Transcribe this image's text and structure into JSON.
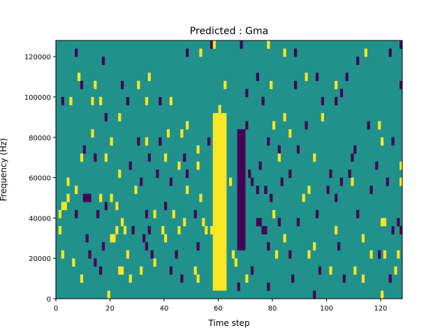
{
  "chart_data": {
    "type": "heatmap",
    "title": "Predicted : Gma",
    "xlabel": "Time step",
    "ylabel": "Frequency (Hz)",
    "xlim": [
      0,
      128
    ],
    "ylim": [
      0,
      128000
    ],
    "x_ticks": [
      0,
      20,
      40,
      60,
      80,
      100,
      120
    ],
    "y_ticks": [
      0,
      20000,
      40000,
      60000,
      80000,
      100000,
      120000
    ],
    "x_tick_labels": [
      "0",
      "20",
      "40",
      "60",
      "80",
      "100",
      "120"
    ],
    "y_tick_labels": [
      "0",
      "20000",
      "40000",
      "60000",
      "80000",
      "100000",
      "120000"
    ],
    "bin_height_hz": 4000,
    "colors": {
      "background": "#21918c",
      "high": "#fde725",
      "low": "#440154"
    },
    "high_band": {
      "x_range": [
        58,
        63
      ],
      "freq_range": [
        4000,
        92000
      ]
    },
    "low_band": {
      "x_range": [
        67,
        70
      ],
      "freq_range": [
        24000,
        84000
      ]
    },
    "cells": [
      {
        "x": 7,
        "y": 120000,
        "v": "low"
      },
      {
        "x": 17,
        "y": 116000,
        "v": "low"
      },
      {
        "x": 48,
        "y": 120000,
        "v": "low"
      },
      {
        "x": 53,
        "y": 120000,
        "v": "high"
      },
      {
        "x": 57,
        "y": 124000,
        "v": "low"
      },
      {
        "x": 58,
        "y": 124000,
        "v": "high"
      },
      {
        "x": 68,
        "y": 124000,
        "v": "low"
      },
      {
        "x": 78,
        "y": 124000,
        "v": "high"
      },
      {
        "x": 84,
        "y": 120000,
        "v": "high"
      },
      {
        "x": 88,
        "y": 120000,
        "v": "low"
      },
      {
        "x": 111,
        "y": 116000,
        "v": "low"
      },
      {
        "x": 114,
        "y": 120000,
        "v": "high"
      },
      {
        "x": 123,
        "y": 120000,
        "v": "low"
      },
      {
        "x": 127,
        "y": 124000,
        "v": "low"
      },
      {
        "x": 8,
        "y": 108000,
        "v": "high"
      },
      {
        "x": 9,
        "y": 104000,
        "v": "low"
      },
      {
        "x": 14,
        "y": 104000,
        "v": "high"
      },
      {
        "x": 24,
        "y": 104000,
        "v": "low"
      },
      {
        "x": 30,
        "y": 104000,
        "v": "high"
      },
      {
        "x": 34,
        "y": 108000,
        "v": "high"
      },
      {
        "x": 62,
        "y": 104000,
        "v": "high"
      },
      {
        "x": 70,
        "y": 100000,
        "v": "low"
      },
      {
        "x": 74,
        "y": 108000,
        "v": "low"
      },
      {
        "x": 79,
        "y": 104000,
        "v": "high"
      },
      {
        "x": 88,
        "y": 104000,
        "v": "low"
      },
      {
        "x": 92,
        "y": 108000,
        "v": "high"
      },
      {
        "x": 96,
        "y": 108000,
        "v": "low"
      },
      {
        "x": 103,
        "y": 104000,
        "v": "high"
      },
      {
        "x": 107,
        "y": 108000,
        "v": "low"
      },
      {
        "x": 105,
        "y": 100000,
        "v": "low"
      },
      {
        "x": 5,
        "y": 96000,
        "v": "high"
      },
      {
        "x": 2,
        "y": 96000,
        "v": "low"
      },
      {
        "x": 13,
        "y": 96000,
        "v": "high"
      },
      {
        "x": 16,
        "y": 96000,
        "v": "high"
      },
      {
        "x": 26,
        "y": 96000,
        "v": "low"
      },
      {
        "x": 33,
        "y": 96000,
        "v": "high"
      },
      {
        "x": 38,
        "y": 96000,
        "v": "low"
      },
      {
        "x": 42,
        "y": 96000,
        "v": "high"
      },
      {
        "x": 60,
        "y": 92000,
        "v": "high"
      },
      {
        "x": 76,
        "y": 96000,
        "v": "low"
      },
      {
        "x": 98,
        "y": 96000,
        "v": "low"
      },
      {
        "x": 103,
        "y": 96000,
        "v": "low"
      },
      {
        "x": 127,
        "y": 104000,
        "v": "low"
      },
      {
        "x": 18,
        "y": 88000,
        "v": "low"
      },
      {
        "x": 23,
        "y": 88000,
        "v": "high"
      },
      {
        "x": 48,
        "y": 84000,
        "v": "high"
      },
      {
        "x": 70,
        "y": 84000,
        "v": "low"
      },
      {
        "x": 80,
        "y": 84000,
        "v": "high"
      },
      {
        "x": 84,
        "y": 88000,
        "v": "high"
      },
      {
        "x": 86,
        "y": 80000,
        "v": "high"
      },
      {
        "x": 92,
        "y": 84000,
        "v": "low"
      },
      {
        "x": 98,
        "y": 88000,
        "v": "high"
      },
      {
        "x": 115,
        "y": 84000,
        "v": "low"
      },
      {
        "x": 119,
        "y": 84000,
        "v": "high"
      },
      {
        "x": 120,
        "y": 76000,
        "v": "high"
      },
      {
        "x": 10,
        "y": 72000,
        "v": "low"
      },
      {
        "x": 13,
        "y": 80000,
        "v": "high"
      },
      {
        "x": 20,
        "y": 76000,
        "v": "high"
      },
      {
        "x": 30,
        "y": 76000,
        "v": "low"
      },
      {
        "x": 33,
        "y": 76000,
        "v": "high"
      },
      {
        "x": 38,
        "y": 76000,
        "v": "low"
      },
      {
        "x": 41,
        "y": 80000,
        "v": "high"
      },
      {
        "x": 46,
        "y": 80000,
        "v": "high"
      },
      {
        "x": 52,
        "y": 72000,
        "v": "high"
      },
      {
        "x": 56,
        "y": 76000,
        "v": "low"
      },
      {
        "x": 78,
        "y": 76000,
        "v": "low"
      },
      {
        "x": 82,
        "y": 72000,
        "v": "low"
      },
      {
        "x": 89,
        "y": 72000,
        "v": "low"
      },
      {
        "x": 110,
        "y": 72000,
        "v": "low"
      },
      {
        "x": 124,
        "y": 76000,
        "v": "low"
      },
      {
        "x": 9,
        "y": 68000,
        "v": "high"
      },
      {
        "x": 14,
        "y": 68000,
        "v": "low"
      },
      {
        "x": 18,
        "y": 68000,
        "v": "high"
      },
      {
        "x": 27,
        "y": 64000,
        "v": "low"
      },
      {
        "x": 34,
        "y": 68000,
        "v": "low"
      },
      {
        "x": 40,
        "y": 68000,
        "v": "high"
      },
      {
        "x": 45,
        "y": 64000,
        "v": "high"
      },
      {
        "x": 47,
        "y": 68000,
        "v": "low"
      },
      {
        "x": 52,
        "y": 64000,
        "v": "high"
      },
      {
        "x": 75,
        "y": 64000,
        "v": "low"
      },
      {
        "x": 82,
        "y": 68000,
        "v": "high"
      },
      {
        "x": 95,
        "y": 68000,
        "v": "high"
      },
      {
        "x": 109,
        "y": 68000,
        "v": "low"
      },
      {
        "x": 118,
        "y": 64000,
        "v": "low"
      },
      {
        "x": 127,
        "y": 64000,
        "v": "high"
      },
      {
        "x": 12,
        "y": 48000,
        "v": "low"
      },
      {
        "x": 11,
        "y": 48000,
        "v": "low"
      },
      {
        "x": 10,
        "y": 48000,
        "v": "low"
      },
      {
        "x": 4,
        "y": 48000,
        "v": "high"
      },
      {
        "x": 16,
        "y": 48000,
        "v": "high"
      },
      {
        "x": 20,
        "y": 48000,
        "v": "high"
      },
      {
        "x": 23,
        "y": 60000,
        "v": "high"
      },
      {
        "x": 29,
        "y": 52000,
        "v": "high"
      },
      {
        "x": 31,
        "y": 56000,
        "v": "low"
      },
      {
        "x": 37,
        "y": 60000,
        "v": "low"
      },
      {
        "x": 42,
        "y": 56000,
        "v": "low"
      },
      {
        "x": 48,
        "y": 52000,
        "v": "high"
      },
      {
        "x": 53,
        "y": 48000,
        "v": "high"
      },
      {
        "x": 64,
        "y": 56000,
        "v": "high"
      },
      {
        "x": 72,
        "y": 56000,
        "v": "low"
      },
      {
        "x": 77,
        "y": 52000,
        "v": "low"
      },
      {
        "x": 79,
        "y": 48000,
        "v": "low"
      },
      {
        "x": 83,
        "y": 56000,
        "v": "low"
      },
      {
        "x": 91,
        "y": 48000,
        "v": "high"
      },
      {
        "x": 93,
        "y": 52000,
        "v": "high"
      },
      {
        "x": 100,
        "y": 52000,
        "v": "low"
      },
      {
        "x": 103,
        "y": 48000,
        "v": "low"
      },
      {
        "x": 109,
        "y": 56000,
        "v": "high"
      },
      {
        "x": 116,
        "y": 52000,
        "v": "low"
      },
      {
        "x": 122,
        "y": 56000,
        "v": "low"
      },
      {
        "x": 127,
        "y": 56000,
        "v": "high"
      },
      {
        "x": 1,
        "y": 40000,
        "v": "high"
      },
      {
        "x": 2,
        "y": 44000,
        "v": "high"
      },
      {
        "x": 7,
        "y": 40000,
        "v": "low"
      },
      {
        "x": 15,
        "y": 40000,
        "v": "low"
      },
      {
        "x": 22,
        "y": 44000,
        "v": "high"
      },
      {
        "x": 24,
        "y": 36000,
        "v": "high"
      },
      {
        "x": 28,
        "y": 32000,
        "v": "low"
      },
      {
        "x": 33,
        "y": 40000,
        "v": "low"
      },
      {
        "x": 36,
        "y": 40000,
        "v": "high"
      },
      {
        "x": 40,
        "y": 44000,
        "v": "low"
      },
      {
        "x": 43,
        "y": 40000,
        "v": "high"
      },
      {
        "x": 47,
        "y": 36000,
        "v": "high"
      },
      {
        "x": 51,
        "y": 40000,
        "v": "low"
      },
      {
        "x": 54,
        "y": 36000,
        "v": "high"
      },
      {
        "x": 57,
        "y": 32000,
        "v": "high"
      },
      {
        "x": 74,
        "y": 36000,
        "v": "low"
      },
      {
        "x": 75,
        "y": 36000,
        "v": "low"
      },
      {
        "x": 80,
        "y": 40000,
        "v": "high"
      },
      {
        "x": 82,
        "y": 36000,
        "v": "low"
      },
      {
        "x": 89,
        "y": 36000,
        "v": "low"
      },
      {
        "x": 96,
        "y": 40000,
        "v": "low"
      },
      {
        "x": 103,
        "y": 32000,
        "v": "high"
      },
      {
        "x": 111,
        "y": 40000,
        "v": "low"
      },
      {
        "x": 120,
        "y": 36000,
        "v": "high"
      },
      {
        "x": 121,
        "y": 36000,
        "v": "high"
      },
      {
        "x": 124,
        "y": 32000,
        "v": "low"
      },
      {
        "x": 126,
        "y": 36000,
        "v": "low"
      },
      {
        "x": 127,
        "y": 32000,
        "v": "low"
      },
      {
        "x": 1,
        "y": 32000,
        "v": "high"
      },
      {
        "x": 11,
        "y": 28000,
        "v": "low"
      },
      {
        "x": 20,
        "y": 28000,
        "v": "high"
      },
      {
        "x": 21,
        "y": 28000,
        "v": "high"
      },
      {
        "x": 25,
        "y": 32000,
        "v": "high"
      },
      {
        "x": 32,
        "y": 28000,
        "v": "low"
      },
      {
        "x": 34,
        "y": 32000,
        "v": "low"
      },
      {
        "x": 39,
        "y": 32000,
        "v": "high"
      },
      {
        "x": 45,
        "y": 32000,
        "v": "high"
      },
      {
        "x": 55,
        "y": 32000,
        "v": "high"
      },
      {
        "x": 76,
        "y": 32000,
        "v": "low"
      },
      {
        "x": 77,
        "y": 32000,
        "v": "low"
      },
      {
        "x": 84,
        "y": 28000,
        "v": "high"
      },
      {
        "x": 95,
        "y": 24000,
        "v": "high"
      },
      {
        "x": 104,
        "y": 24000,
        "v": "low"
      },
      {
        "x": 113,
        "y": 28000,
        "v": "high"
      },
      {
        "x": 116,
        "y": 20000,
        "v": "high"
      },
      {
        "x": 119,
        "y": 20000,
        "v": "low"
      },
      {
        "x": 121,
        "y": 20000,
        "v": "high"
      },
      {
        "x": 126,
        "y": 20000,
        "v": "high"
      },
      {
        "x": 2,
        "y": 20000,
        "v": "high"
      },
      {
        "x": 6,
        "y": 16000,
        "v": "high"
      },
      {
        "x": 12,
        "y": 20000,
        "v": "low"
      },
      {
        "x": 14,
        "y": 16000,
        "v": "low"
      },
      {
        "x": 17,
        "y": 24000,
        "v": "low"
      },
      {
        "x": 26,
        "y": 20000,
        "v": "high"
      },
      {
        "x": 33,
        "y": 24000,
        "v": "low"
      },
      {
        "x": 35,
        "y": 20000,
        "v": "low"
      },
      {
        "x": 44,
        "y": 20000,
        "v": "low"
      },
      {
        "x": 52,
        "y": 24000,
        "v": "low"
      },
      {
        "x": 61,
        "y": 20000,
        "v": "high"
      },
      {
        "x": 66,
        "y": 16000,
        "v": "high"
      },
      {
        "x": 78,
        "y": 24000,
        "v": "low"
      },
      {
        "x": 81,
        "y": 20000,
        "v": "high"
      },
      {
        "x": 86,
        "y": 20000,
        "v": "low"
      },
      {
        "x": 93,
        "y": 20000,
        "v": "high"
      },
      {
        "x": 97,
        "y": 12000,
        "v": "low"
      },
      {
        "x": 101,
        "y": 12000,
        "v": "high"
      },
      {
        "x": 106,
        "y": 8000,
        "v": "low"
      },
      {
        "x": 110,
        "y": 12000,
        "v": "high"
      },
      {
        "x": 113,
        "y": 8000,
        "v": "high"
      },
      {
        "x": 123,
        "y": 8000,
        "v": "low"
      },
      {
        "x": 125,
        "y": 12000,
        "v": "high"
      },
      {
        "x": 9,
        "y": 8000,
        "v": "high"
      },
      {
        "x": 16,
        "y": 12000,
        "v": "low"
      },
      {
        "x": 23,
        "y": 12000,
        "v": "high"
      },
      {
        "x": 24,
        "y": 12000,
        "v": "high"
      },
      {
        "x": 27,
        "y": 8000,
        "v": "high"
      },
      {
        "x": 31,
        "y": 12000,
        "v": "high"
      },
      {
        "x": 36,
        "y": 16000,
        "v": "high"
      },
      {
        "x": 42,
        "y": 12000,
        "v": "low"
      },
      {
        "x": 46,
        "y": 8000,
        "v": "low"
      },
      {
        "x": 51,
        "y": 12000,
        "v": "high"
      },
      {
        "x": 52,
        "y": 8000,
        "v": "high"
      },
      {
        "x": 67,
        "y": 4000,
        "v": "low"
      },
      {
        "x": 70,
        "y": 8000,
        "v": "high"
      },
      {
        "x": 72,
        "y": 12000,
        "v": "low"
      },
      {
        "x": 78,
        "y": 4000,
        "v": "low"
      },
      {
        "x": 87,
        "y": 8000,
        "v": "low"
      },
      {
        "x": 95,
        "y": 0,
        "v": "low"
      },
      {
        "x": 120,
        "y": 0,
        "v": "high"
      },
      {
        "x": 19,
        "y": 0,
        "v": "high"
      },
      {
        "x": 4,
        "y": 56000,
        "v": "high"
      },
      {
        "x": 7,
        "y": 52000,
        "v": "high"
      },
      {
        "x": 3,
        "y": 44000,
        "v": "high"
      },
      {
        "x": 18,
        "y": 44000,
        "v": "low"
      },
      {
        "x": 48,
        "y": 60000,
        "v": "low"
      },
      {
        "x": 71,
        "y": 60000,
        "v": "low"
      },
      {
        "x": 74,
        "y": 52000,
        "v": "low"
      },
      {
        "x": 86,
        "y": 60000,
        "v": "low"
      },
      {
        "x": 101,
        "y": 60000,
        "v": "low"
      },
      {
        "x": 108,
        "y": 60000,
        "v": "low"
      },
      {
        "x": 105,
        "y": 56000,
        "v": "low"
      },
      {
        "x": 40,
        "y": 28000,
        "v": "high"
      },
      {
        "x": 22,
        "y": 32000,
        "v": "high"
      },
      {
        "x": 65,
        "y": 20000,
        "v": "high"
      }
    ]
  }
}
